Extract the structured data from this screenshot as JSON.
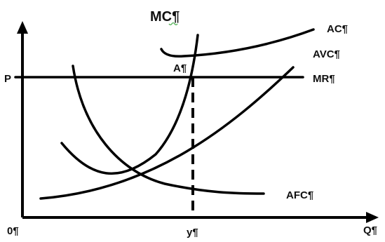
{
  "labels": {
    "mc": "MC¶",
    "ac": "AC¶",
    "avc": "AVC¶",
    "mr": "MR¶",
    "afc": "AFC¶",
    "a": "A¶",
    "p": "P",
    "origin": "0¶",
    "y": "y¶",
    "q": "Q¶"
  },
  "colors": {
    "line": "#000000",
    "text": "#111111",
    "squiggle": "#4caf50"
  }
}
